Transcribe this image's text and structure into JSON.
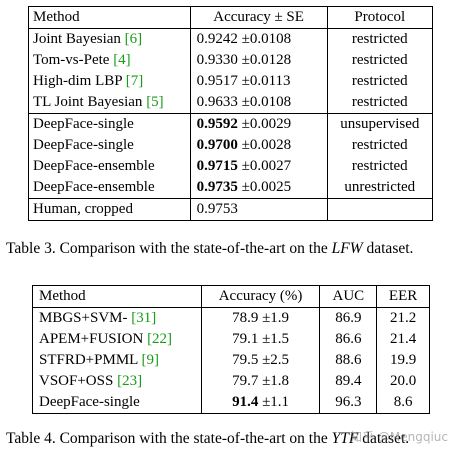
{
  "table3": {
    "headers": [
      "Method",
      "Accuracy ± SE",
      "Protocol"
    ],
    "rows": [
      {
        "method": "Joint Bayesian ",
        "cite": "[6]",
        "acc": "0.9242",
        "se": "±0.0108",
        "bold": false,
        "protocol": "restricted"
      },
      {
        "method": "Tom-vs-Pete ",
        "cite": "[4]",
        "acc": "0.9330",
        "se": "±0.0128",
        "bold": false,
        "protocol": "restricted"
      },
      {
        "method": "High-dim LBP ",
        "cite": "[7]",
        "acc": "0.9517",
        "se": "±0.0113",
        "bold": false,
        "protocol": "restricted"
      },
      {
        "method": "TL Joint Bayesian ",
        "cite": "[5]",
        "acc": "0.9633",
        "se": "±0.0108",
        "bold": false,
        "protocol": "restricted"
      },
      {
        "method": "DeepFace-single",
        "cite": "",
        "acc": "0.9592",
        "se": "±0.0029",
        "bold": true,
        "protocol": "unsupervised"
      },
      {
        "method": "DeepFace-single",
        "cite": "",
        "acc": "0.9700",
        "se": "±0.0028",
        "bold": true,
        "protocol": "restricted"
      },
      {
        "method": "DeepFace-ensemble",
        "cite": "",
        "acc": "0.9715",
        "se": "±0.0027",
        "bold": true,
        "protocol": "restricted"
      },
      {
        "method": "DeepFace-ensemble",
        "cite": "",
        "acc": "0.9735",
        "se": "±0.0025",
        "bold": true,
        "protocol": "unrestricted"
      },
      {
        "method": "Human, cropped",
        "cite": "",
        "acc": "0.9753",
        "se": "",
        "bold": false,
        "protocol": ""
      }
    ],
    "caption_prefix": "Table 3. Comparison with the state-of-the-art on the ",
    "caption_italic": "LFW",
    "caption_suffix": " dataset."
  },
  "table4": {
    "headers": [
      "Method",
      "Accuracy (%)",
      "AUC",
      "EER"
    ],
    "rows": [
      {
        "method": "MBGS+SVM- ",
        "cite": "[31]",
        "acc": "78.9",
        "se": "±1.9",
        "bold": false,
        "auc": "86.9",
        "eer": "21.2"
      },
      {
        "method": "APEM+FUSION ",
        "cite": "[22]",
        "acc": "79.1",
        "se": "±1.5",
        "bold": false,
        "auc": "86.6",
        "eer": "21.4"
      },
      {
        "method": "STFRD+PMML ",
        "cite": "[9]",
        "acc": "79.5",
        "se": "±2.5",
        "bold": false,
        "auc": "88.6",
        "eer": "19.9"
      },
      {
        "method": "VSOF+OSS ",
        "cite": "[23]",
        "acc": "79.7",
        "se": "±1.8",
        "bold": false,
        "auc": "89.4",
        "eer": "20.0"
      },
      {
        "method": "DeepFace-single",
        "cite": "",
        "acc": "91.4",
        "se": "±1.1",
        "bold": true,
        "auc": "96.3",
        "eer": "8.6"
      }
    ],
    "caption_prefix": "Table 4. Comparison with the state-of-the-art on the ",
    "caption_italic": "YTF",
    "caption_suffix": " dataset."
  },
  "watermark": "知乎 @Mengqiuc",
  "colors": {
    "citation": "#1a9a1a"
  }
}
